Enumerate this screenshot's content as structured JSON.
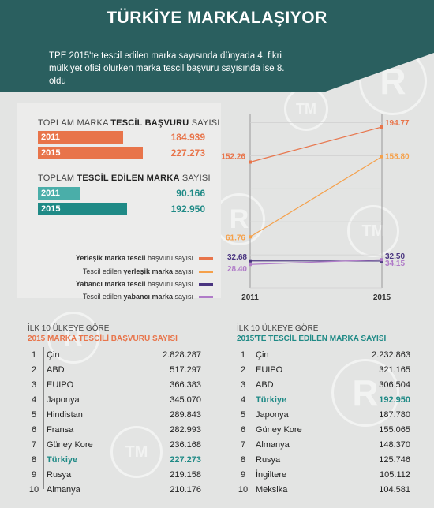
{
  "title": "TÜRKİYE MARKALAŞIYOR",
  "intro": "TPE 2015'te tescil edilen marka sayısında dünyada 4. fikri mülkiyet ofisi olurken marka tescil başvuru sayısında ise 8. oldu",
  "colors": {
    "header": "#2a5f5f",
    "orange": "#e8744a",
    "light_orange": "#f5a04a",
    "dark_purple": "#4a3580",
    "light_purple": "#b07bc8",
    "teal": "#1f8a86",
    "light_teal": "#4aaea9"
  },
  "basvuru": {
    "title_pre": "TOPLAM MARKA ",
    "title_bold": "TESCİL BAŞVURU",
    "title_post": " SAYISI",
    "rows": [
      {
        "year": "2011",
        "value": "184.939",
        "num": 184939
      },
      {
        "year": "2015",
        "value": "227.273",
        "num": 227273
      }
    ]
  },
  "tescil": {
    "title_pre": "TOPLAM ",
    "title_bold": "TESCİL EDİLEN MARKA",
    "title_post": " SAYISI",
    "rows": [
      {
        "year": "2011",
        "value": "90.166",
        "num": 90166
      },
      {
        "year": "2015",
        "value": "192.950",
        "num": 192950
      }
    ]
  },
  "chart_data": {
    "type": "line",
    "x": [
      "2011",
      "2015"
    ],
    "series": [
      {
        "name": "Yerleşik marka tescil başvuru sayısı",
        "name_bold": "Yerleşik marka tescil",
        "name_rest": " başvuru sayısı",
        "values": [
          152.26,
          194.77
        ],
        "labels": [
          "152.26",
          "194.77"
        ],
        "color": "#e8744a"
      },
      {
        "name": "Tescil edilen yerleşik marka sayısı",
        "name_pre": "Tescil edilen ",
        "name_bold": "yerleşik marka",
        "name_rest": " sayısı",
        "values": [
          61.76,
          158.8
        ],
        "labels": [
          "61.76",
          "158.80"
        ],
        "color": "#f5a04a"
      },
      {
        "name": "Yabancı marka tescil başvuru sayısı",
        "name_bold": "Yabancı marka tescil",
        "name_rest": " başvuru sayısı",
        "values": [
          32.68,
          32.5
        ],
        "labels": [
          "32.68",
          "32.50"
        ],
        "color": "#4a3580"
      },
      {
        "name": "Tescil edilen yabancı marka sayısı",
        "name_pre": "Tescil edilen ",
        "name_bold": "yabancı marka",
        "name_rest": " sayısı",
        "values": [
          28.4,
          34.15
        ],
        "labels": [
          "28.40",
          "34.15"
        ],
        "color": "#b07bc8"
      }
    ],
    "ylim": [
      0,
      210
    ],
    "grid": true
  },
  "table_left": {
    "head1": "İLK 10 ÜLKEYE GÖRE",
    "head2": "2015 MARKA TESCİLİ BAŞVURU SAYISI",
    "rows": [
      {
        "rank": "1",
        "name": "Çin",
        "value": "2.828.287"
      },
      {
        "rank": "2",
        "name": "ABD",
        "value": "517.297"
      },
      {
        "rank": "3",
        "name": "EUIPO",
        "value": "366.383"
      },
      {
        "rank": "4",
        "name": "Japonya",
        "value": "345.070"
      },
      {
        "rank": "5",
        "name": "Hindistan",
        "value": "289.843"
      },
      {
        "rank": "6",
        "name": "Fransa",
        "value": "282.993"
      },
      {
        "rank": "7",
        "name": "Güney Kore",
        "value": "236.168"
      },
      {
        "rank": "8",
        "name": "Türkiye",
        "value": "227.273",
        "highlight": true
      },
      {
        "rank": "9",
        "name": "Rusya",
        "value": "219.158"
      },
      {
        "rank": "10",
        "name": "Almanya",
        "value": "210.176"
      }
    ]
  },
  "table_right": {
    "head1": "İLK 10 ÜLKEYE GÖRE",
    "head2": "2015'TE TESCİL EDİLEN MARKA SAYISI",
    "rows": [
      {
        "rank": "1",
        "name": "Çin",
        "value": "2.232.863"
      },
      {
        "rank": "2",
        "name": "EUIPO",
        "value": "321.165"
      },
      {
        "rank": "3",
        "name": "ABD",
        "value": "306.504"
      },
      {
        "rank": "4",
        "name": "Türkiye",
        "value": "192.950",
        "highlight": true
      },
      {
        "rank": "5",
        "name": "Japonya",
        "value": "187.780"
      },
      {
        "rank": "6",
        "name": "Güney Kore",
        "value": "155.065"
      },
      {
        "rank": "7",
        "name": "Almanya",
        "value": "148.370"
      },
      {
        "rank": "8",
        "name": "Rusya",
        "value": "125.746"
      },
      {
        "rank": "9",
        "name": "İngiltere",
        "value": "105.112"
      },
      {
        "rank": "10",
        "name": "Meksika",
        "value": "104.581"
      }
    ]
  }
}
